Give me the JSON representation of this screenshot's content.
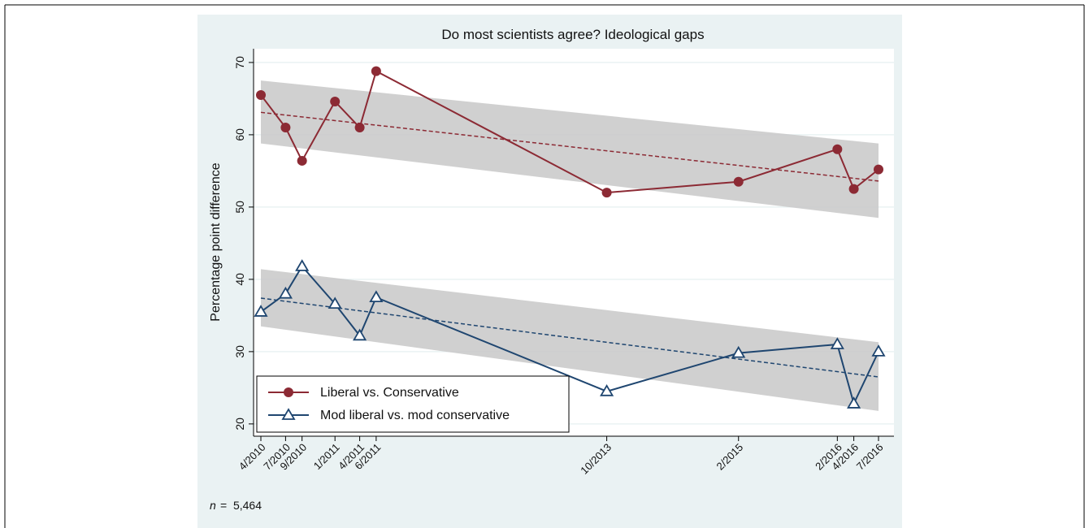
{
  "chart_data": {
    "type": "line",
    "title": "Do most scientists agree?  Ideological gaps",
    "y_label": "Percentage point difference",
    "note_symbol": "n",
    "note_value": "=  5,464",
    "x": [
      "4/2010",
      "7/2010",
      "9/2010",
      "1/2011",
      "4/2011",
      "6/2011",
      "10/2013",
      "2/2015",
      "2/2016",
      "4/2016",
      "7/2016"
    ],
    "series": [
      {
        "name": "Liberal vs. Conservative",
        "color": "#8c2a34",
        "marker": "circle",
        "values": [
          65.5,
          61,
          56.4,
          64.6,
          61,
          68.8,
          52,
          53.5,
          58,
          52.5,
          55.2
        ],
        "fit": [
          63.1,
          53.6
        ],
        "ci_lower": [
          58.8,
          48.5
        ],
        "ci_upper": [
          67.5,
          58.8
        ]
      },
      {
        "name": "Mod liberal vs. mod conservative",
        "color": "#1f4670",
        "marker": "triangle-open",
        "values": [
          35.5,
          38,
          41.8,
          36.6,
          32.2,
          37.5,
          24.5,
          29.8,
          31,
          22.8,
          30
        ],
        "fit": [
          37.4,
          26.5
        ],
        "ci_lower": [
          33.5,
          21.8
        ],
        "ci_upper": [
          41.4,
          31.3
        ]
      }
    ],
    "ylim": [
      18.3,
      71.9
    ],
    "yticks": [
      20,
      30,
      40,
      50,
      60,
      70
    ],
    "grid": true,
    "legend": "lower left"
  }
}
